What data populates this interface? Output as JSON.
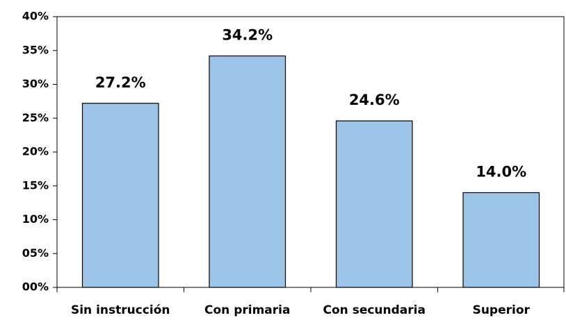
{
  "chart_data": {
    "type": "bar",
    "categories": [
      "Sin instrucción",
      "Con primaria",
      "Con secundaria",
      "Superior"
    ],
    "values": [
      27.2,
      34.2,
      24.6,
      14.0
    ],
    "value_labels": [
      "27.2%",
      "34.2%",
      "24.6%",
      "14.0%"
    ],
    "color": "#9dc3e6",
    "ylim": [
      0,
      40
    ],
    "yticks": [
      {
        "value": 0,
        "label": "00%"
      },
      {
        "value": 5,
        "label": "05%"
      },
      {
        "value": 10,
        "label": "10%"
      },
      {
        "value": 15,
        "label": "15%"
      },
      {
        "value": 20,
        "label": "20%"
      },
      {
        "value": 25,
        "label": "25%"
      },
      {
        "value": 30,
        "label": "30%"
      },
      {
        "value": 35,
        "label": "35%"
      },
      {
        "value": 40,
        "label": "40%"
      }
    ],
    "grid": false
  }
}
